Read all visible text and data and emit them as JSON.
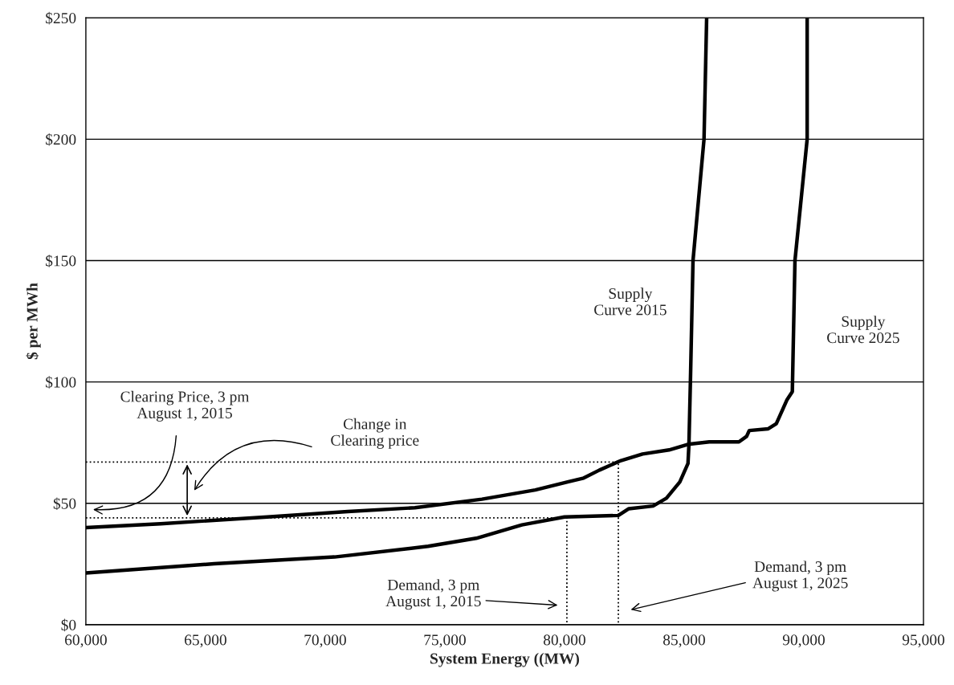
{
  "chart_data": {
    "type": "line",
    "xlabel": "System Energy ((MW)",
    "ylabel": "$ per MWh",
    "xlim": [
      60000,
      95000
    ],
    "ylim": [
      0,
      250
    ],
    "xticks": [
      {
        "value": 60000,
        "label": "60,000"
      },
      {
        "value": 65000,
        "label": "65,000"
      },
      {
        "value": 70000,
        "label": "70,000"
      },
      {
        "value": 75000,
        "label": "75,000"
      },
      {
        "value": 80000,
        "label": "80,000"
      },
      {
        "value": 85000,
        "label": "85,000"
      },
      {
        "value": 90000,
        "label": "90,000"
      },
      {
        "value": 95000,
        "label": "95,000"
      }
    ],
    "yticks": [
      {
        "value": 0,
        "label": "$0"
      },
      {
        "value": 50,
        "label": "$50"
      },
      {
        "value": 100,
        "label": "$100"
      },
      {
        "value": 150,
        "label": "$150"
      },
      {
        "value": 200,
        "label": "$200"
      },
      {
        "value": 250,
        "label": "$250"
      }
    ],
    "grid": "y",
    "marker": "none",
    "line_style": "solid",
    "series": [
      {
        "name": "Supply Curve 2015",
        "color": "#000000",
        "x": [
          60000,
          65360,
          70390,
          74300,
          76310,
          78220,
          80000,
          82250,
          82690,
          83700,
          84260,
          84820,
          85160,
          85200,
          85270,
          85370,
          85830,
          85940
        ],
        "values": [
          21.3,
          25.1,
          27.9,
          32.3,
          35.6,
          41.1,
          44.4,
          45,
          47.8,
          48.9,
          52.1,
          58.8,
          66.4,
          74.3,
          103.8,
          150,
          200,
          250
        ]
      },
      {
        "name": "Supply Curve 2025",
        "color": "#000000",
        "x": [
          60000,
          63120,
          67580,
          70940,
          73750,
          76550,
          78780,
          80130,
          80800,
          81460,
          82360,
          83260,
          84370,
          85160,
          86050,
          87290,
          87610,
          87720,
          88515,
          88850,
          89300,
          89520,
          89630,
          90140,
          90140
        ],
        "values": [
          40,
          41.6,
          44.4,
          46.6,
          48.2,
          51.7,
          55.5,
          58.8,
          60.4,
          63.7,
          67.6,
          70.3,
          72,
          74.3,
          75.3,
          75.3,
          77.6,
          80,
          80.7,
          82.8,
          92.7,
          96,
          150,
          200,
          250
        ]
      },
      {
        "color": "#000000",
        "line_style": "dotted",
        "x": [
          60000,
          80100,
          80100
        ],
        "values": [
          44,
          44,
          0
        ]
      },
      {
        "color": "#000000",
        "line_style": "dotted",
        "x": [
          60000,
          82250,
          82250
        ],
        "values": [
          67,
          67,
          0
        ]
      }
    ],
    "annotations": [
      "Clearing Price, 3 pm\nAugust 1, 2015",
      "Change in\nClearing price",
      "Demand, 3 pm\nAugust 1, 2015",
      "Demand, 3 pm\nAugust 1, 2025"
    ]
  }
}
